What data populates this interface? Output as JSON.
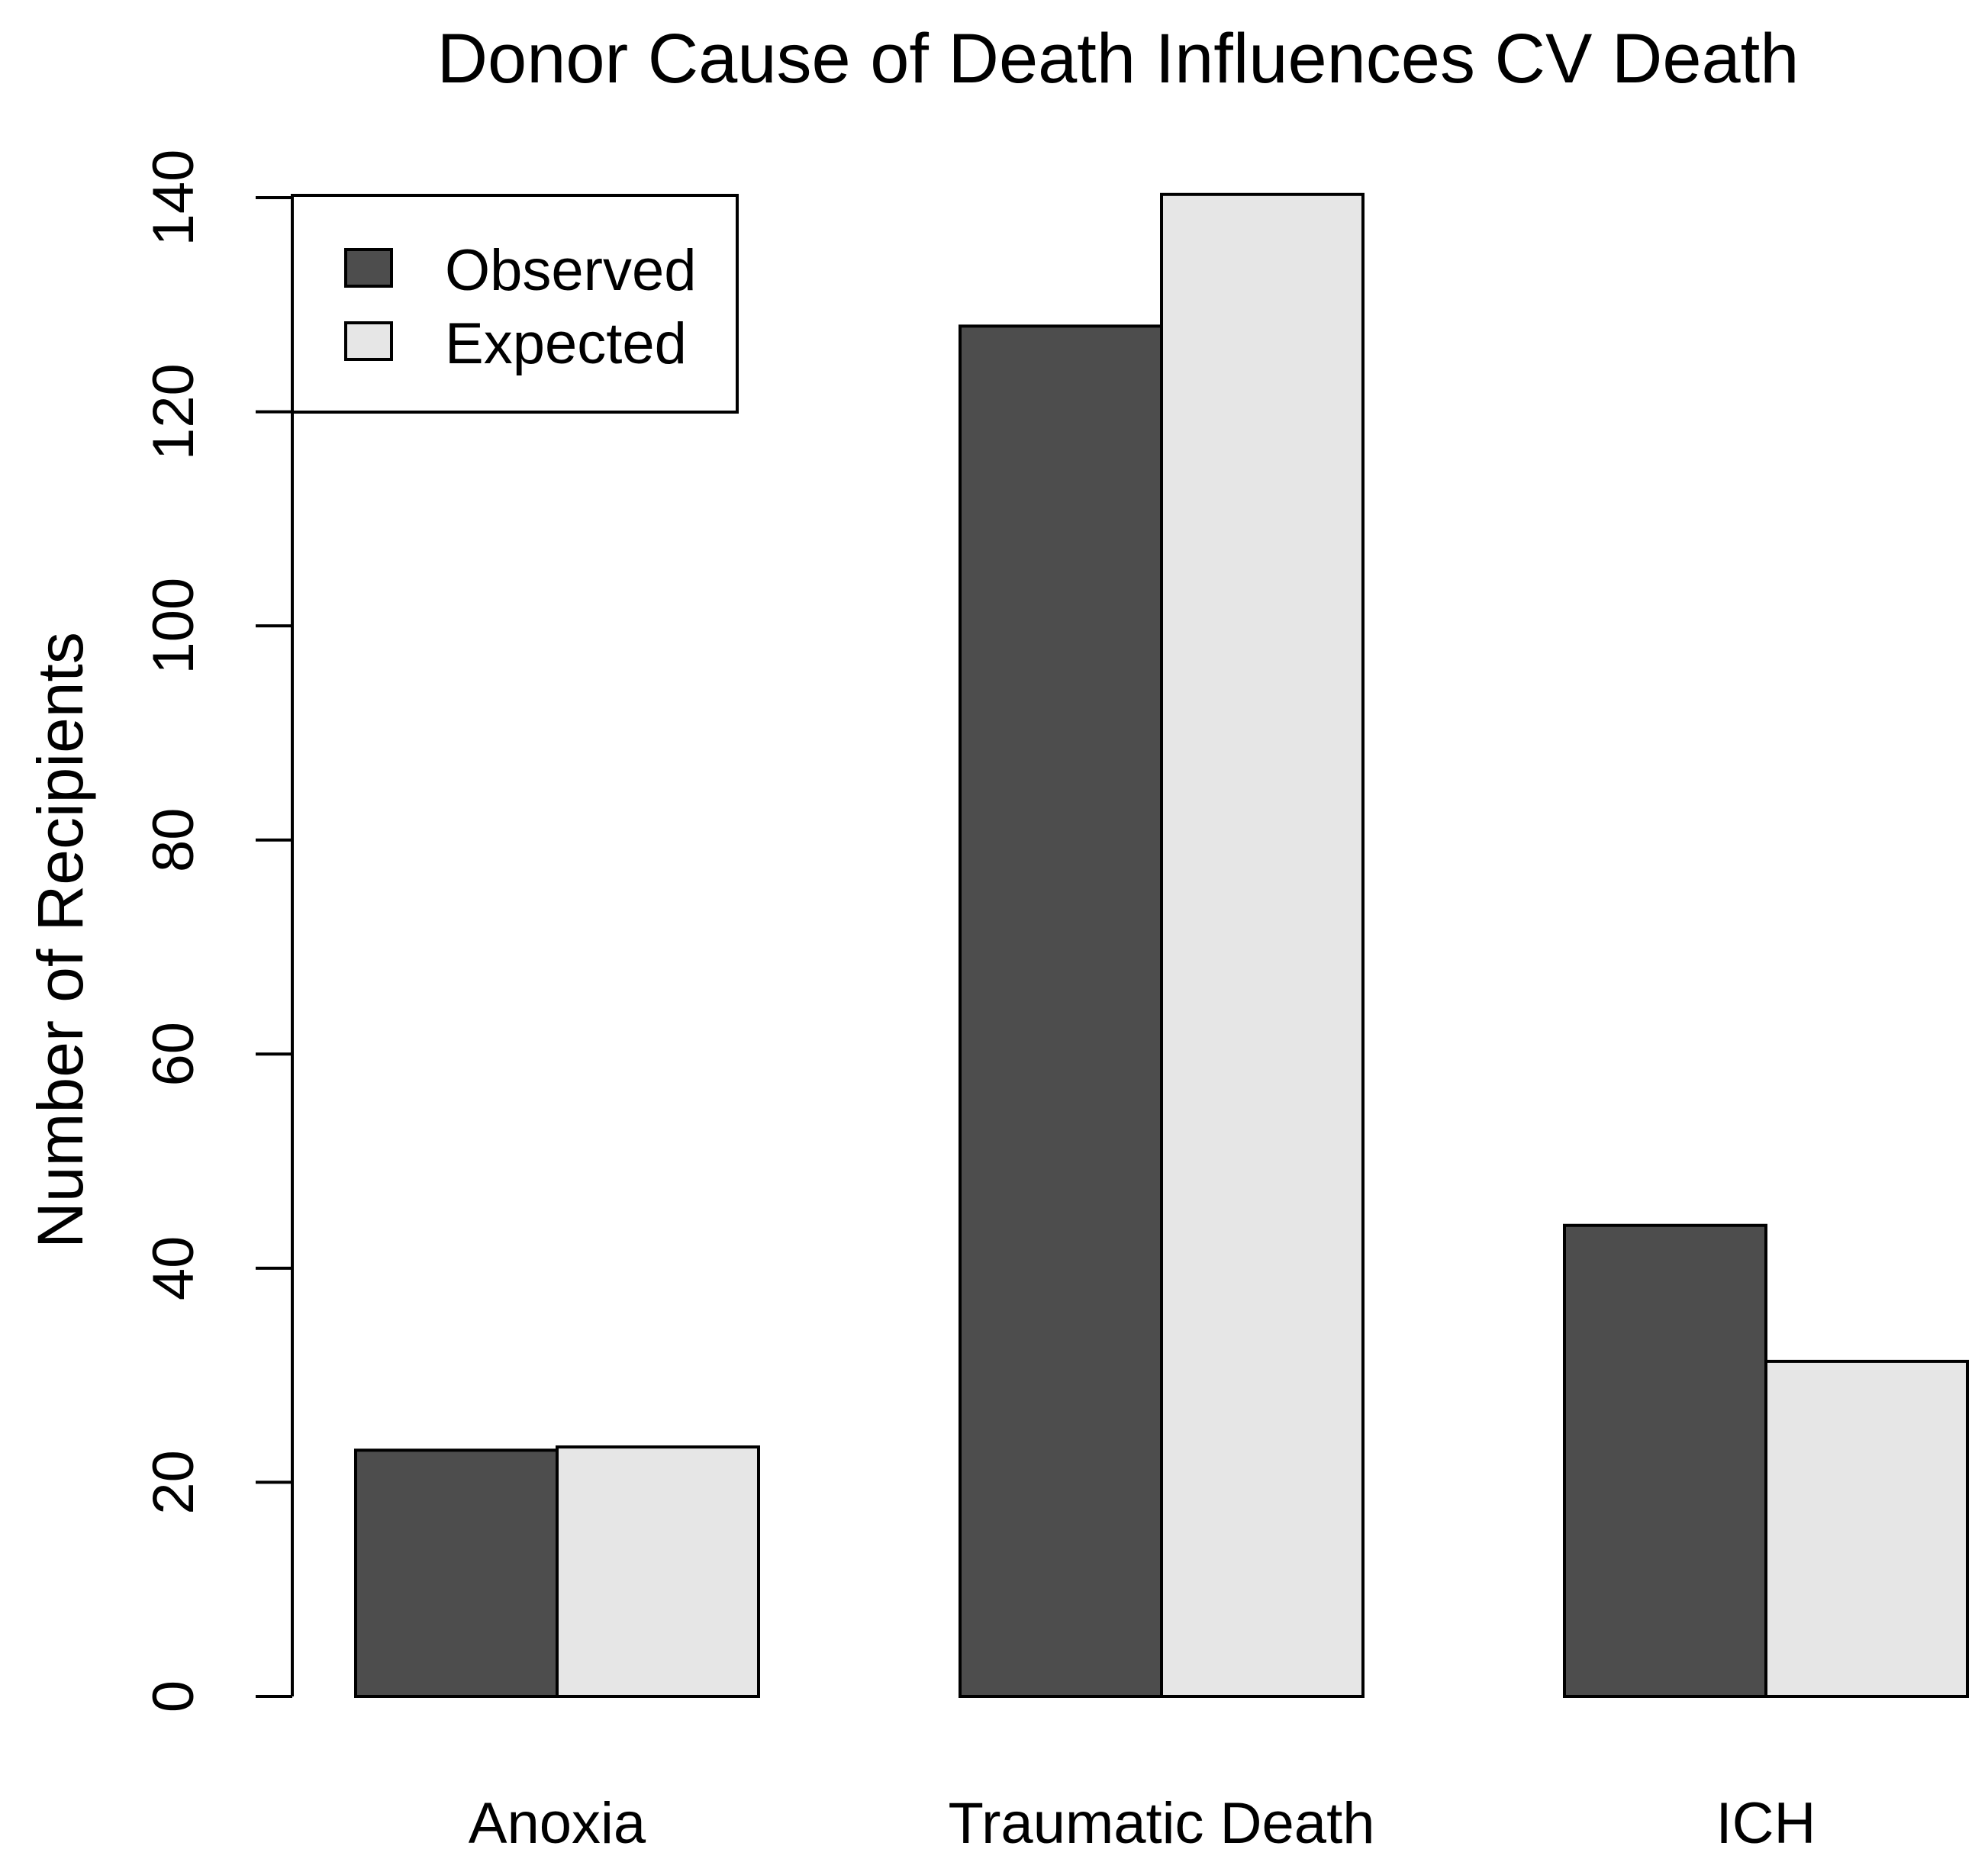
{
  "chart_data": {
    "type": "bar",
    "title": "Donor Cause of Death Influences CV Death",
    "xlabel": "",
    "ylabel": "Number of Recipients",
    "categories": [
      "Anoxia",
      "Traumatic Death",
      "ICH"
    ],
    "series": [
      {
        "name": "Observed",
        "values": [
          23,
          128,
          44
        ],
        "color": "#4d4d4d"
      },
      {
        "name": "Expected",
        "values": [
          23.3,
          140.3,
          31.3
        ],
        "color": "#e6e6e6"
      }
    ],
    "ylim": [
      0,
      140
    ],
    "yticks": [
      "0",
      "20",
      "40",
      "60",
      "80",
      "100",
      "120",
      "140"
    ],
    "legend": {
      "position": "top-left",
      "entries": [
        "Observed",
        "Expected"
      ]
    },
    "grid": false
  }
}
